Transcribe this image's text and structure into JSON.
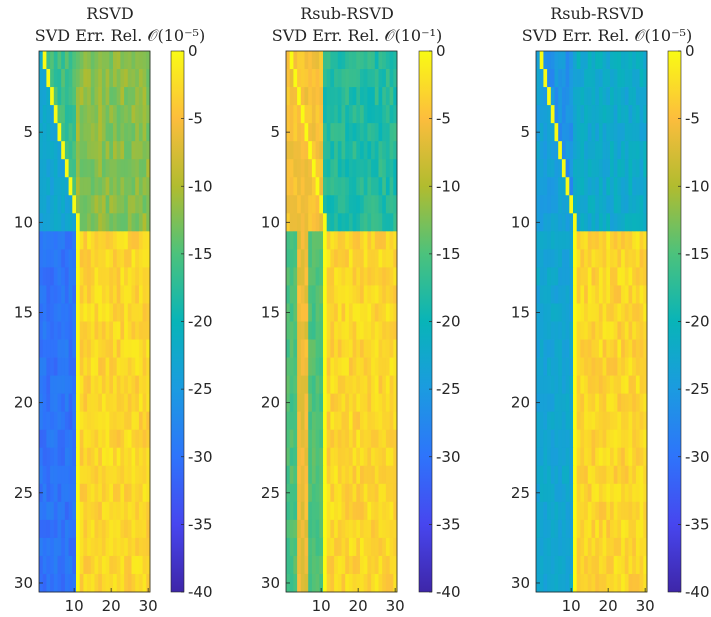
{
  "chart_data": [
    {
      "type": "heatmap",
      "title": "RSVD",
      "subtitle": "SVD Err. Rel. 𝒪(10⁻⁵)",
      "rows": 30,
      "cols": 30,
      "xticks": [
        10,
        20,
        30
      ],
      "yticks": [
        5,
        10,
        15,
        20,
        25,
        30
      ],
      "colorbar": {
        "range": [
          -40,
          0
        ],
        "ticks": [
          0,
          -5,
          -10,
          -15,
          -20,
          -25,
          -30,
          -35,
          -40
        ]
      },
      "regions": {
        "rows_1_10_lower_left": -23,
        "rows_1_10_right": -12,
        "diagonal": 0,
        "rows_11_30_left_cols_1_10": -30,
        "rows_11_30_right_cols_11_30": -3
      }
    },
    {
      "type": "heatmap",
      "title": "Rsub-RSVD",
      "subtitle": "SVD Err. Rel. 𝒪(10⁻¹)",
      "rows": 30,
      "cols": 30,
      "xticks": [
        10,
        20,
        30
      ],
      "yticks": [
        5,
        10,
        15,
        20,
        25,
        30
      ],
      "colorbar": {
        "range": [
          -40,
          0
        ],
        "ticks": [
          0,
          -5,
          -10,
          -15,
          -20,
          -25,
          -30,
          -35,
          -40
        ]
      },
      "regions": {
        "rows_1_10_left_cols_1_10": -5,
        "rows_1_10_right": -18,
        "diagonal": 0,
        "rows_11_30_left_cols_1_10": -15,
        "rows_11_30_right_cols_11_30": -3
      }
    },
    {
      "type": "heatmap",
      "title": "Rsub-RSVD",
      "subtitle": "SVD Err. Rel. 𝒪(10⁻⁵)",
      "rows": 30,
      "cols": 30,
      "xticks": [
        10,
        20,
        30
      ],
      "yticks": [
        5,
        10,
        15,
        20,
        25,
        30
      ],
      "colorbar": {
        "range": [
          -40,
          0
        ],
        "ticks": [
          0,
          -5,
          -10,
          -15,
          -20,
          -25,
          -30,
          -35,
          -40
        ]
      },
      "regions": {
        "rows_1_10_lower_left": -24,
        "rows_1_10_right": -22,
        "diagonal": 0,
        "rows_11_30_left_cols_1_10": -23,
        "rows_11_30_right_cols_11_30": -3
      }
    }
  ]
}
